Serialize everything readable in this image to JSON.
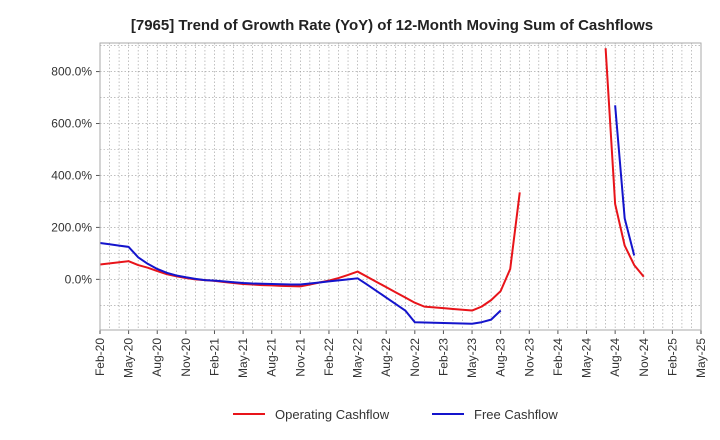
{
  "chart_data": {
    "type": "line",
    "title": "[7965]  Trend of Growth Rate (YoY) of 12-Month Moving Sum of Cashflows",
    "xlabel": "",
    "ylabel": "",
    "ylim": [
      -195,
      910
    ],
    "y_ticks": [
      0,
      200,
      400,
      600,
      800
    ],
    "y_tick_labels": [
      "0.0%",
      "200.0%",
      "400.0%",
      "600.0%",
      "800.0%"
    ],
    "x_tick_labels": [
      "Feb-20",
      "May-20",
      "Aug-20",
      "Nov-20",
      "Feb-21",
      "May-21",
      "Aug-21",
      "Nov-21",
      "Feb-22",
      "May-22",
      "Aug-22",
      "Nov-22",
      "Feb-23",
      "May-23",
      "Aug-23",
      "Nov-23",
      "Feb-24",
      "May-24",
      "Aug-24",
      "Nov-24",
      "Feb-25",
      "May-25"
    ],
    "grid": true,
    "legend_position": "bottom",
    "series": [
      {
        "name": "Operating Cashflow",
        "color": "#e8141a",
        "points": [
          [
            "2020-02",
            57
          ],
          [
            "2020-05",
            70
          ],
          [
            "2020-06",
            55
          ],
          [
            "2020-07",
            45
          ],
          [
            "2020-08",
            32
          ],
          [
            "2020-09",
            20
          ],
          [
            "2020-10",
            12
          ],
          [
            "2020-11",
            5
          ],
          [
            "2020-12",
            0
          ],
          [
            "2021-01",
            -3
          ],
          [
            "2021-02",
            -6
          ],
          [
            "2021-03",
            -10
          ],
          [
            "2021-04",
            -14
          ],
          [
            "2021-05",
            -18
          ],
          [
            "2021-06",
            -20
          ],
          [
            "2021-07",
            -22
          ],
          [
            "2021-08",
            -23
          ],
          [
            "2021-09",
            -25
          ],
          [
            "2021-10",
            -26
          ],
          [
            "2021-11",
            -27
          ],
          [
            "2021-12",
            -20
          ],
          [
            "2022-01",
            -12
          ],
          [
            "2022-02",
            -5
          ],
          [
            "2022-03",
            5
          ],
          [
            "2022-04",
            17
          ],
          [
            "2022-05",
            30
          ],
          [
            "2022-06",
            10
          ],
          [
            "2022-07",
            -10
          ],
          [
            "2022-08",
            -30
          ],
          [
            "2022-09",
            -50
          ],
          [
            "2022-10",
            -70
          ],
          [
            "2022-11",
            -90
          ],
          [
            "2022-12",
            -105
          ],
          [
            "2023-01",
            -108
          ],
          [
            "2023-02",
            -111
          ],
          [
            "2023-03",
            -114
          ],
          [
            "2023-04",
            -117
          ],
          [
            "2023-05",
            -120
          ],
          [
            "2023-06",
            -105
          ],
          [
            "2023-07",
            -80
          ],
          [
            "2023-08",
            -45
          ],
          [
            "2023-09",
            40
          ],
          [
            "2023-10",
            335
          ],
          [
            null,
            null
          ],
          [
            "2024-07",
            890
          ],
          [
            "2024-08",
            290
          ],
          [
            "2024-09",
            130
          ],
          [
            "2024-10",
            55
          ],
          [
            "2024-11",
            10
          ]
        ]
      },
      {
        "name": "Free Cashflow",
        "color": "#1414cc",
        "points": [
          [
            "2020-02",
            140
          ],
          [
            "2020-03",
            135
          ],
          [
            "2020-04",
            130
          ],
          [
            "2020-05",
            125
          ],
          [
            "2020-06",
            85
          ],
          [
            "2020-07",
            60
          ],
          [
            "2020-08",
            40
          ],
          [
            "2020-09",
            25
          ],
          [
            "2020-10",
            15
          ],
          [
            "2020-11",
            8
          ],
          [
            "2020-12",
            2
          ],
          [
            "2021-01",
            -3
          ],
          [
            "2021-02",
            -5
          ],
          [
            "2021-03",
            -8
          ],
          [
            "2021-04",
            -11
          ],
          [
            "2021-05",
            -14
          ],
          [
            "2021-06",
            -16
          ],
          [
            "2021-07",
            -17
          ],
          [
            "2021-08",
            -18
          ],
          [
            "2021-09",
            -19
          ],
          [
            "2021-10",
            -20
          ],
          [
            "2021-11",
            -20
          ],
          [
            "2021-12",
            -16
          ],
          [
            "2022-01",
            -12
          ],
          [
            "2022-02",
            -8
          ],
          [
            "2022-03",
            -4
          ],
          [
            "2022-04",
            0
          ],
          [
            "2022-05",
            4
          ],
          [
            "2022-06",
            -20
          ],
          [
            "2022-07",
            -45
          ],
          [
            "2022-08",
            -70
          ],
          [
            "2022-09",
            -95
          ],
          [
            "2022-10",
            -120
          ],
          [
            "2022-11",
            -165
          ],
          [
            "2022-12",
            -166
          ],
          [
            "2023-01",
            -167
          ],
          [
            "2023-02",
            -168
          ],
          [
            "2023-03",
            -169
          ],
          [
            "2023-04",
            -170
          ],
          [
            "2023-05",
            -171
          ],
          [
            "2023-06",
            -165
          ],
          [
            "2023-07",
            -155
          ],
          [
            "2023-08",
            -120
          ],
          [
            null,
            null
          ],
          [
            "2024-08",
            670
          ],
          [
            "2024-09",
            235
          ],
          [
            "2024-10",
            92
          ]
        ]
      }
    ]
  }
}
